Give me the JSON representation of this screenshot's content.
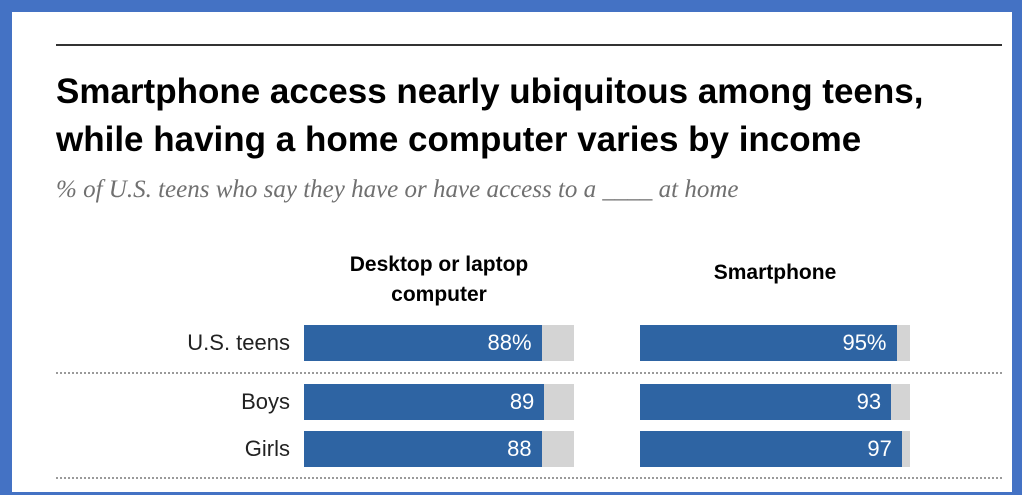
{
  "title_line1": "Smartphone access nearly ubiquitous among teens,",
  "title_line2": "while having a home computer varies by income",
  "subtitle": "% of U.S. teens who say they have or have access to a ____ at home",
  "colors": {
    "bar": "#2e64a3",
    "track": "#d4d4d4",
    "frame": "#4472c4"
  },
  "chart_data": {
    "type": "bar",
    "orientation": "horizontal",
    "categories": [
      "U.S. teens",
      "Boys",
      "Girls"
    ],
    "series": [
      {
        "name": "Desktop or laptop computer",
        "values": [
          88,
          89,
          88
        ],
        "labels": [
          "88%",
          "89",
          "88"
        ]
      },
      {
        "name": "Smartphone",
        "values": [
          95,
          93,
          97
        ],
        "labels": [
          "95%",
          "93",
          "97"
        ]
      }
    ],
    "xlim": [
      0,
      100
    ],
    "grid": false
  }
}
